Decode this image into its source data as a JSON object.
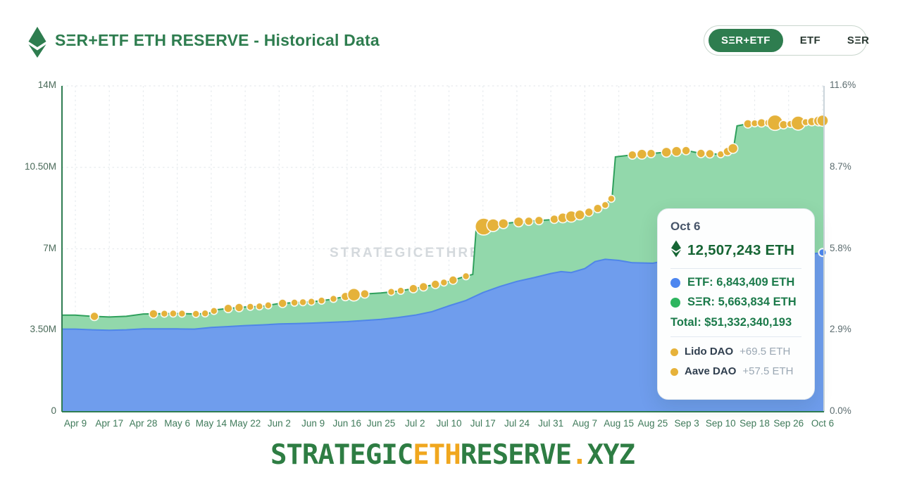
{
  "header": {
    "logo_icon": "ethereum-diamond-icon",
    "title": "SΞR+ETF ETH RESERVE - Historical Data",
    "toggle": {
      "options": [
        "SΞR+ETF",
        "ETF",
        "SΞR"
      ],
      "active": "SΞR+ETF"
    }
  },
  "watermark": "STRATEGICETHRESERVE.XYZ",
  "tooltip": {
    "date": "Oct 6",
    "total_eth": "12,507,243 ETH",
    "rows": [
      {
        "series": "ETF",
        "dot_color": "#4c86f0",
        "label": "ETF: 6,843,409 ETH"
      },
      {
        "series": "SΞR",
        "dot_color": "#2eb55f",
        "label": "SΞR: 5,663,834 ETH"
      }
    ],
    "total_usd": "Total: $51,332,340,193",
    "events": [
      {
        "dot_color": "#e6b23a",
        "name": "Lido DAO",
        "delta": "+69.5 ETH"
      },
      {
        "dot_color": "#e6b23a",
        "name": "Aave DAO",
        "delta": "+57.5 ETH"
      }
    ]
  },
  "footer_wordmark": {
    "strategic": "STRATEGIC",
    "eth": "ETH",
    "reserve": "RESERVE",
    "dot": ".",
    "xyz": "XYZ"
  },
  "colors": {
    "accent_green": "#2e7d4f",
    "etf_fill": "#6f9ded",
    "etf_line": "#4f86e8",
    "ser_fill": "#92d8ab",
    "ser_line": "#2fa05c",
    "bubble_gold": "#e5b23a",
    "grid": "#e7ebee",
    "wordmark_gold": "#f0a71e"
  },
  "chart_data": {
    "type": "area",
    "stacked": true,
    "title": "SΞR+ETF ETH RESERVE - Historical Data",
    "grid": true,
    "legend": "none (tooltip acts as legend)",
    "x_tick_labels": [
      "Apr 9",
      "Apr 17",
      "Apr 28",
      "May 6",
      "May 14",
      "May 22",
      "Jun 2",
      "Jun 9",
      "Jun 16",
      "Jun 25",
      "Jul 2",
      "Jul 10",
      "Jul 17",
      "Jul 24",
      "Jul 31",
      "Aug 7",
      "Aug 15",
      "Aug 25",
      "Sep 3",
      "Sep 10",
      "Sep 18",
      "Sep 26",
      "Oct 6"
    ],
    "y_left_axis": {
      "labels": [
        "0",
        "3.50M",
        "7M",
        "10.50M",
        "14M"
      ],
      "values_m": [
        0,
        3.5,
        7,
        10.5,
        14
      ],
      "max_m": 14,
      "unit": "ETH"
    },
    "y_right_axis": {
      "labels": [
        "0.0%",
        "2.9%",
        "5.8%",
        "8.7%",
        "11.6%"
      ],
      "values_pct": [
        0,
        2.9,
        5.8,
        8.7,
        11.6
      ],
      "unit": "% of supply"
    },
    "series": [
      {
        "name": "ETF",
        "fill": "#6f9ded",
        "line": "#4f86e8",
        "unit": "million ETH",
        "x_unit": "tick index (0 = Apr 9, 22 = Oct 6)",
        "points": [
          [
            0,
            3.55
          ],
          [
            0.5,
            3.52
          ],
          [
            1,
            3.5
          ],
          [
            1.5,
            3.52
          ],
          [
            2,
            3.56
          ],
          [
            3,
            3.56
          ],
          [
            3.5,
            3.55
          ],
          [
            4,
            3.62
          ],
          [
            4.5,
            3.66
          ],
          [
            5,
            3.7
          ],
          [
            5.5,
            3.73
          ],
          [
            6,
            3.77
          ],
          [
            6.5,
            3.79
          ],
          [
            7,
            3.81
          ],
          [
            7.5,
            3.84
          ],
          [
            8,
            3.87
          ],
          [
            8.5,
            3.92
          ],
          [
            9,
            3.97
          ],
          [
            9.5,
            4.05
          ],
          [
            10,
            4.15
          ],
          [
            10.5,
            4.3
          ],
          [
            11,
            4.55
          ],
          [
            11.5,
            4.78
          ],
          [
            12,
            5.12
          ],
          [
            12.5,
            5.38
          ],
          [
            13,
            5.6
          ],
          [
            13.5,
            5.76
          ],
          [
            14,
            5.94
          ],
          [
            14.3,
            6.02
          ],
          [
            14.6,
            5.98
          ],
          [
            15,
            6.15
          ],
          [
            15.3,
            6.45
          ],
          [
            15.6,
            6.55
          ],
          [
            16,
            6.5
          ],
          [
            16.4,
            6.4
          ],
          [
            17,
            6.38
          ],
          [
            17.5,
            6.52
          ],
          [
            18,
            6.58
          ],
          [
            18.4,
            6.5
          ],
          [
            19,
            6.46
          ],
          [
            19.5,
            6.56
          ],
          [
            20,
            6.6
          ],
          [
            20.5,
            6.64
          ],
          [
            21,
            6.68
          ],
          [
            21.5,
            6.74
          ],
          [
            22,
            6.843
          ]
        ]
      },
      {
        "name": "SΞR+ETF Total",
        "fill": "#92d8ab",
        "line": "#2fa05c",
        "unit": "million ETH",
        "x_unit": "tick index (0 = Apr 9, 22 = Oct 6)",
        "points": [
          [
            0,
            4.15
          ],
          [
            0.5,
            4.1
          ],
          [
            1,
            4.07
          ],
          [
            1.5,
            4.1
          ],
          [
            2,
            4.2
          ],
          [
            2.5,
            4.21
          ],
          [
            3,
            4.22
          ],
          [
            3.6,
            4.2
          ],
          [
            3.95,
            4.24
          ],
          [
            4.15,
            4.38
          ],
          [
            4.5,
            4.44
          ],
          [
            5,
            4.5
          ],
          [
            5.5,
            4.53
          ],
          [
            6,
            4.65
          ],
          [
            6.5,
            4.69
          ],
          [
            7,
            4.73
          ],
          [
            7.5,
            4.82
          ],
          [
            7.95,
            4.95
          ],
          [
            8.1,
            5.02
          ],
          [
            8.5,
            5.06
          ],
          [
            9,
            5.1
          ],
          [
            9.5,
            5.18
          ],
          [
            10,
            5.3
          ],
          [
            10.5,
            5.44
          ],
          [
            11,
            5.6
          ],
          [
            11.4,
            5.78
          ],
          [
            11.7,
            5.9
          ],
          [
            11.8,
            7.85
          ],
          [
            12,
            7.95
          ],
          [
            12.5,
            8.06
          ],
          [
            13,
            8.15
          ],
          [
            13.5,
            8.2
          ],
          [
            14,
            8.25
          ],
          [
            14.5,
            8.36
          ],
          [
            15,
            8.5
          ],
          [
            15.3,
            8.68
          ],
          [
            15.6,
            8.88
          ],
          [
            15.8,
            9.18
          ],
          [
            15.9,
            10.95
          ],
          [
            16.3,
            11.02
          ],
          [
            17,
            11.1
          ],
          [
            17.5,
            11.16
          ],
          [
            18,
            11.22
          ],
          [
            18.4,
            11.1
          ],
          [
            19,
            11.06
          ],
          [
            19.2,
            11.18
          ],
          [
            19.38,
            11.33
          ],
          [
            19.48,
            12.28
          ],
          [
            19.8,
            12.37
          ],
          [
            20.2,
            12.41
          ],
          [
            20.6,
            12.42
          ],
          [
            20.85,
            12.33
          ],
          [
            21.1,
            12.37
          ],
          [
            21.5,
            12.44
          ],
          [
            22,
            12.507
          ]
        ]
      }
    ],
    "event_bubbles": {
      "color": "#e5b23a",
      "stroke": "#ffffff",
      "note": "[tick index, radius px] riding the total line",
      "points": [
        [
          0.56,
          6
        ],
        [
          2.3,
          6
        ],
        [
          2.62,
          5
        ],
        [
          2.88,
          5
        ],
        [
          3.14,
          5
        ],
        [
          3.55,
          5
        ],
        [
          3.82,
          5
        ],
        [
          4.08,
          5
        ],
        [
          4.5,
          6
        ],
        [
          4.82,
          6
        ],
        [
          5.15,
          5
        ],
        [
          5.42,
          5
        ],
        [
          5.68,
          5
        ],
        [
          6.1,
          6
        ],
        [
          6.45,
          5
        ],
        [
          6.7,
          5
        ],
        [
          6.95,
          5
        ],
        [
          7.25,
          5
        ],
        [
          7.6,
          5
        ],
        [
          7.95,
          6
        ],
        [
          8.2,
          9
        ],
        [
          8.52,
          6
        ],
        [
          9.3,
          5
        ],
        [
          9.58,
          5
        ],
        [
          9.95,
          6
        ],
        [
          10.25,
          6
        ],
        [
          10.6,
          6
        ],
        [
          10.85,
          5
        ],
        [
          11.12,
          6
        ],
        [
          11.5,
          5
        ],
        [
          12.02,
          12
        ],
        [
          12.3,
          9
        ],
        [
          12.6,
          7
        ],
        [
          13.05,
          7
        ],
        [
          13.35,
          6
        ],
        [
          13.65,
          6
        ],
        [
          14.1,
          6
        ],
        [
          14.35,
          7
        ],
        [
          14.6,
          8
        ],
        [
          14.85,
          7
        ],
        [
          15.12,
          6
        ],
        [
          15.38,
          6
        ],
        [
          15.6,
          5
        ],
        [
          15.78,
          5
        ],
        [
          16.4,
          6
        ],
        [
          16.68,
          7
        ],
        [
          16.95,
          6
        ],
        [
          17.4,
          7
        ],
        [
          17.7,
          7
        ],
        [
          17.98,
          6
        ],
        [
          18.42,
          6
        ],
        [
          18.68,
          6
        ],
        [
          19.0,
          5
        ],
        [
          19.2,
          6
        ],
        [
          19.36,
          7
        ],
        [
          19.8,
          6
        ],
        [
          20.0,
          5
        ],
        [
          20.2,
          6
        ],
        [
          20.4,
          5
        ],
        [
          20.6,
          11
        ],
        [
          20.85,
          6
        ],
        [
          21.05,
          5
        ],
        [
          21.28,
          10
        ],
        [
          21.5,
          5
        ],
        [
          21.68,
          6
        ],
        [
          21.88,
          7
        ],
        [
          22,
          8
        ]
      ]
    },
    "end_dot": {
      "series": "ETF",
      "color": "#4c86f0",
      "t": 22,
      "value_m": 6.843
    },
    "final_values": {
      "date": "Oct 6",
      "etf_eth": 6843409,
      "ser_eth": 5663834,
      "total_eth": 12507243,
      "total_usd": 51332340193
    }
  }
}
